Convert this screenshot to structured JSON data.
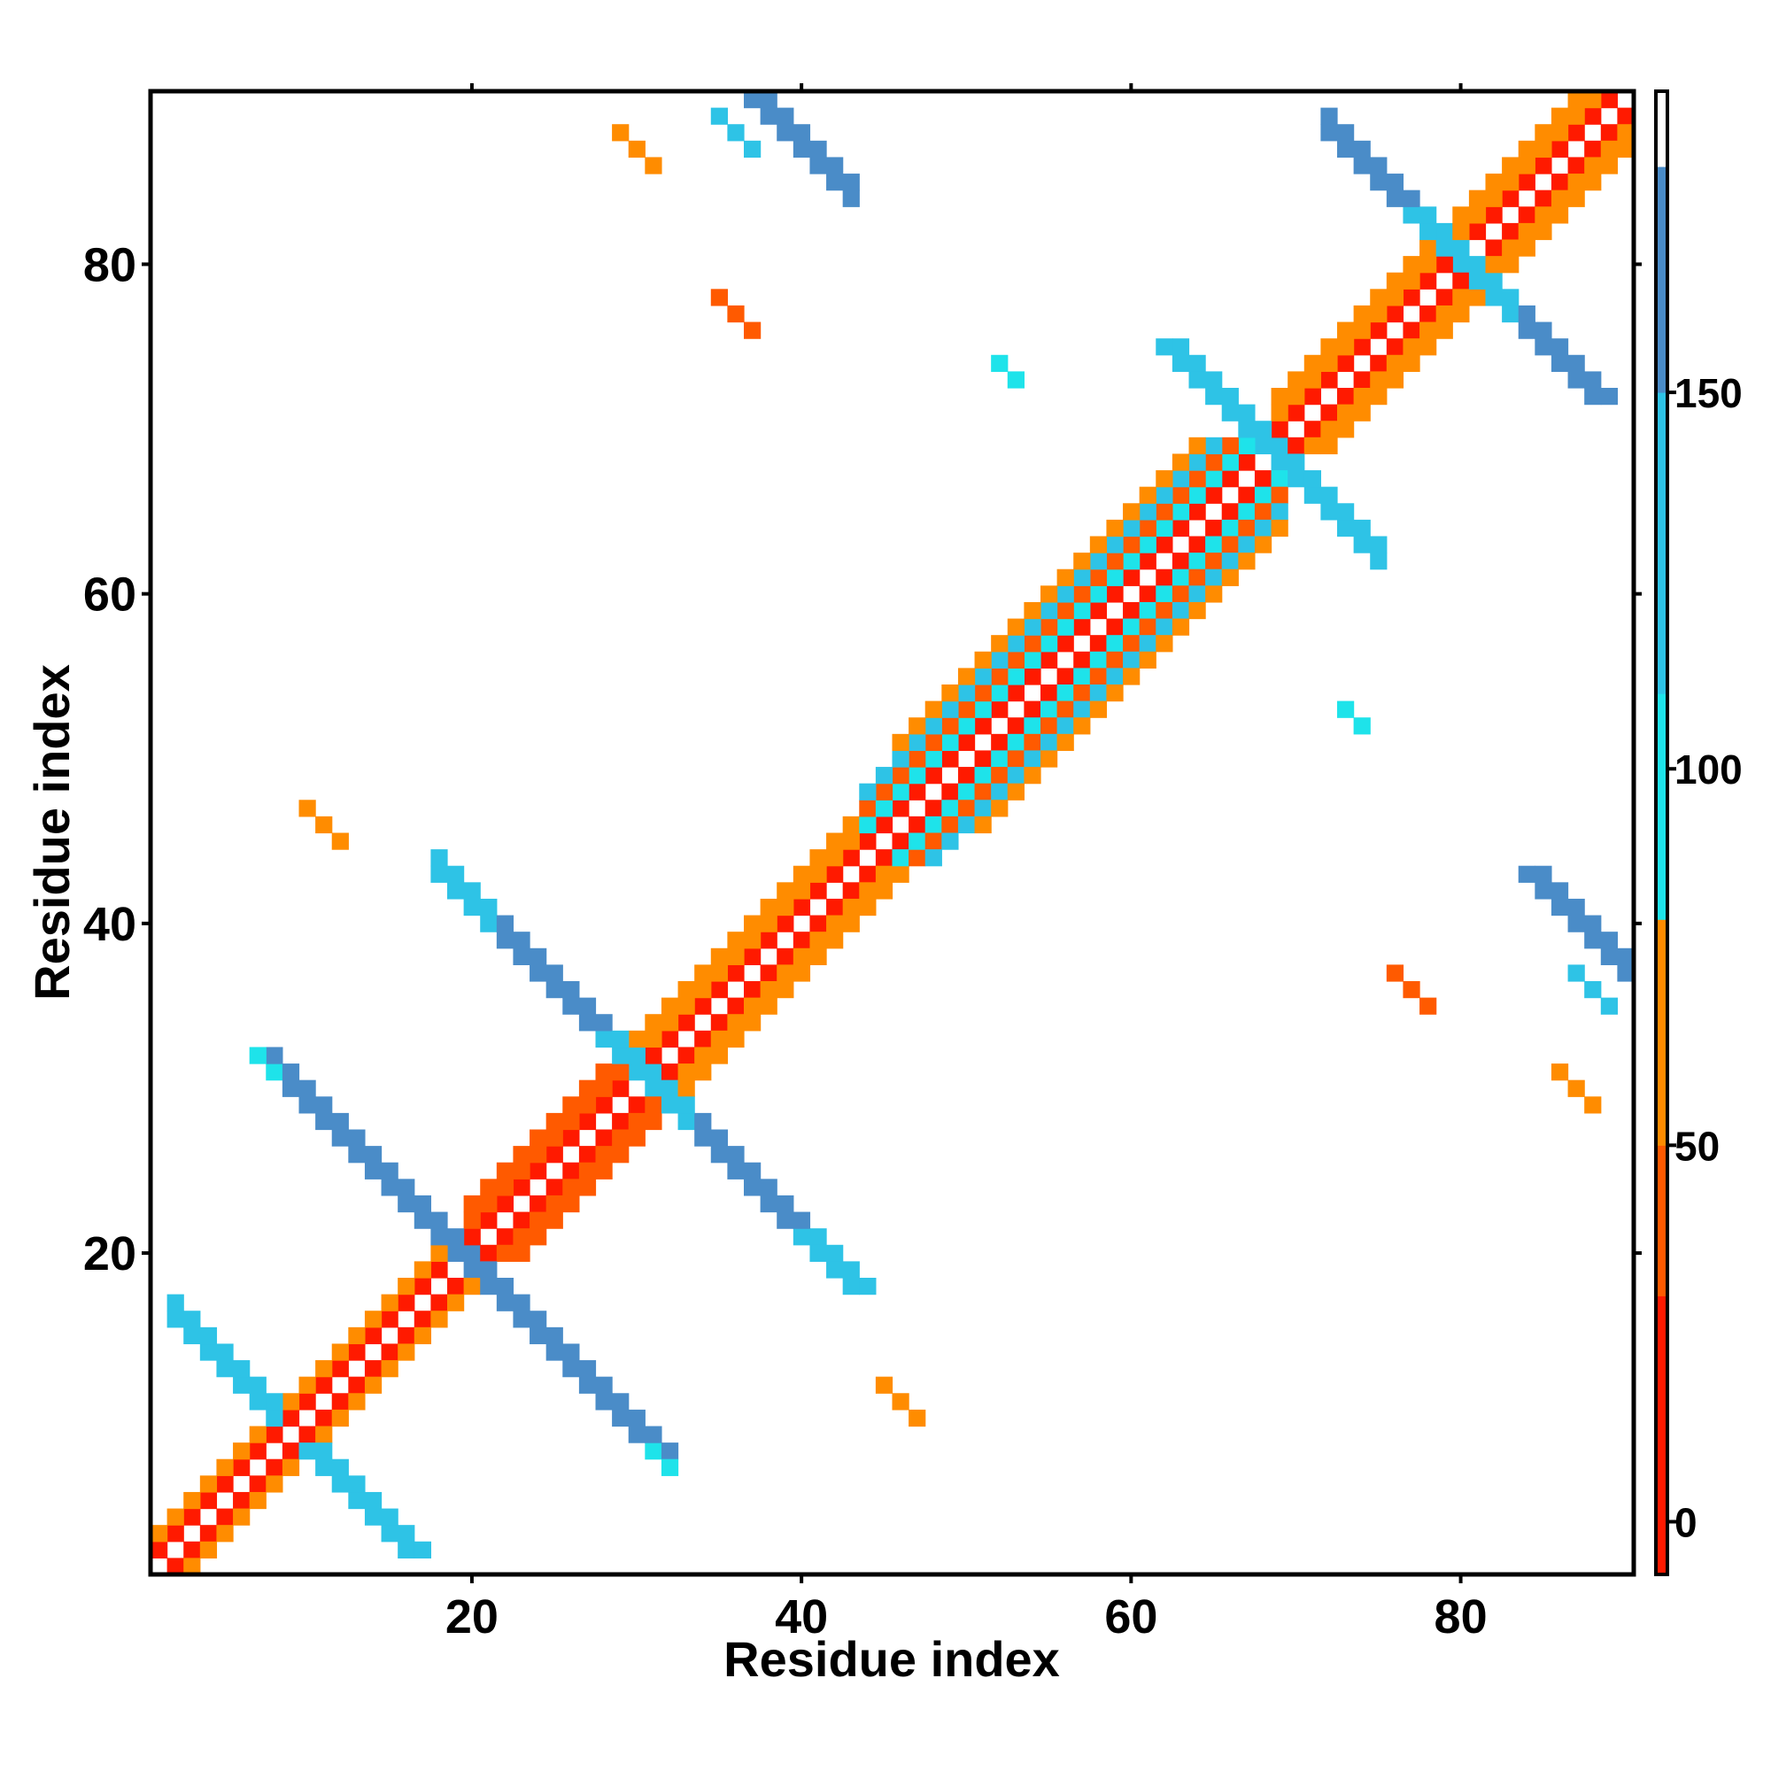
{
  "chart_data": {
    "type": "heatmap",
    "title": "",
    "xlabel": "Residue index",
    "ylabel": "Residue index",
    "xlim": [
      0.5,
      90.5
    ],
    "ylim": [
      0.5,
      90.5
    ],
    "x_ticks": [
      20,
      40,
      60,
      80
    ],
    "x_tick_labels": [
      "20",
      "40",
      "60",
      "80"
    ],
    "y_ticks": [
      20,
      40,
      60,
      80
    ],
    "y_tick_labels": [
      "20",
      "40",
      "60",
      "80"
    ],
    "colorbar": {
      "range": [
        -7,
        190
      ],
      "ticks": [
        0,
        50,
        100,
        150
      ],
      "tick_labels": [
        "0",
        "50",
        "100",
        "150"
      ],
      "segments": [
        {
          "from": -7,
          "to": 30,
          "color": "#ff1a00"
        },
        {
          "from": 30,
          "to": 50,
          "color": "#ff5a00"
        },
        {
          "from": 50,
          "to": 80,
          "color": "#ff8c00"
        },
        {
          "from": 80,
          "to": 110,
          "color": "#1ee3ea"
        },
        {
          "from": 110,
          "to": 150,
          "color": "#2ec3e6"
        },
        {
          "from": 150,
          "to": 180,
          "color": "#4a8cc8"
        },
        {
          "from": 180,
          "to": 190,
          "color": "#ffffff"
        }
      ]
    },
    "color_levels": {
      "diag": "#ffffff",
      "red": "#ff1a00",
      "redorange": "#ff5a00",
      "orange": "#ff8c00",
      "cyan": "#1ee3ea",
      "lightblue": "#2ec3e6",
      "blue": "#4a8cc8"
    },
    "patterns": [
      {
        "kind": "diag",
        "i0": 1,
        "i1": 90,
        "d0": 0,
        "d1": 0,
        "level": "diag"
      },
      {
        "kind": "diag",
        "i0": 1,
        "i1": 19,
        "d0": 1,
        "d1": 1,
        "level": "red"
      },
      {
        "kind": "diag",
        "i0": 1,
        "i1": 18,
        "d0": 2,
        "d1": 2,
        "level": "orange"
      },
      {
        "kind": "diag",
        "i0": 16,
        "i1": 30,
        "d0": 1,
        "d1": 1,
        "level": "red"
      },
      {
        "kind": "diag",
        "i0": 20,
        "i1": 29,
        "d0": 2,
        "d1": 3,
        "level": "redorange"
      },
      {
        "kind": "diag",
        "i0": 28,
        "i1": 45,
        "d0": 1,
        "d1": 1,
        "level": "red"
      },
      {
        "kind": "diag",
        "i0": 30,
        "i1": 44,
        "d0": 2,
        "d1": 3,
        "level": "orange"
      },
      {
        "kind": "diag",
        "i0": 44,
        "i1": 68,
        "d0": 1,
        "d1": 1,
        "level": "red"
      },
      {
        "kind": "diag",
        "i0": 44,
        "i1": 67,
        "d0": 2,
        "d1": 2,
        "level": "cyan"
      },
      {
        "kind": "diag",
        "i0": 44,
        "i1": 66,
        "d0": 3,
        "d1": 3,
        "level": "redorange"
      },
      {
        "kind": "diag",
        "i0": 44,
        "i1": 65,
        "d0": 4,
        "d1": 4,
        "level": "lightblue"
      },
      {
        "kind": "diag",
        "i0": 46,
        "i1": 64,
        "d0": 5,
        "d1": 5,
        "level": "orange"
      },
      {
        "kind": "diag",
        "i0": 69,
        "i1": 90,
        "d0": 1,
        "d1": 1,
        "level": "red"
      },
      {
        "kind": "diag",
        "i0": 69,
        "i1": 89,
        "d0": 2,
        "d1": 3,
        "level": "orange"
      },
      {
        "kind": "anti",
        "s": 18,
        "t0": 2,
        "t1": 8,
        "w": 2,
        "level": "lightblue"
      },
      {
        "kind": "anti",
        "s": 39,
        "t0": 8,
        "t1": 20,
        "w": 2,
        "level": "blue"
      },
      {
        "kind": "anti",
        "s": 39,
        "t0": 7,
        "t1": 8,
        "w": 1,
        "level": "cyan"
      },
      {
        "kind": "anti",
        "s": 61,
        "t0": 21,
        "t1": 31,
        "w": 2,
        "level": "blue"
      },
      {
        "kind": "anti",
        "s": 61,
        "t0": 18,
        "t1": 21,
        "w": 2,
        "level": "lightblue"
      },
      {
        "kind": "anti",
        "s": 61,
        "t0": 31,
        "t1": 33,
        "w": 2,
        "level": "lightblue"
      },
      {
        "kind": "anti",
        "s": 137,
        "t0": 63,
        "t1": 75,
        "w": 2,
        "level": "lightblue"
      },
      {
        "kind": "anti",
        "s": 160,
        "t0": 72,
        "t1": 80,
        "w": 2,
        "level": "blue"
      },
      {
        "kind": "anti",
        "s": 160,
        "t0": 80,
        "t1": 83,
        "w": 2,
        "level": "lightblue"
      },
      {
        "kind": "anti",
        "s": 127,
        "t0": 36,
        "t1": 43,
        "w": 2,
        "level": "blue"
      },
      {
        "kind": "anti",
        "s": 124,
        "t0": 35,
        "t1": 37,
        "w": 1,
        "level": "lightblue"
      },
      {
        "kind": "anti",
        "s": 126,
        "t0": 52,
        "t1": 53,
        "w": 1,
        "level": "cyan"
      },
      {
        "kind": "anti",
        "s": 117,
        "t0": 29,
        "t1": 31,
        "w": 1,
        "level": "orange"
      },
      {
        "kind": "anti",
        "s": 113,
        "t0": 35,
        "t1": 37,
        "w": 1,
        "level": "redorange"
      },
      {
        "kind": "anti",
        "s": 57,
        "t0": 10,
        "t1": 12,
        "w": 1,
        "level": "orange"
      }
    ]
  }
}
